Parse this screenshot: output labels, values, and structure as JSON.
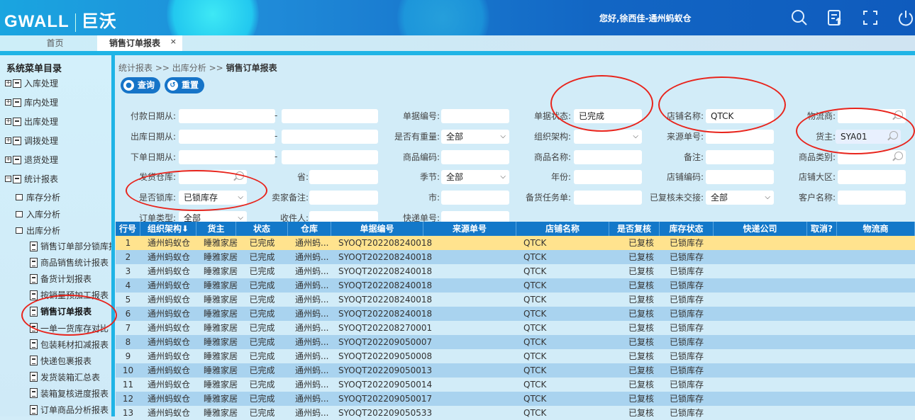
{
  "header": {
    "logo_text": "GWALL",
    "logo_cn": "巨沃",
    "greeting": "您好,徐西佳-通州蚂蚁仓",
    "icons": [
      "search-icon",
      "export-icon",
      "fullscreen-icon",
      "power-icon"
    ]
  },
  "tabs": [
    {
      "label": "首页"
    },
    {
      "label": "销售订单报表",
      "close": "×"
    }
  ],
  "sidebar": {
    "title": "系统菜单目录",
    "groups": [
      {
        "label": "入库处理"
      },
      {
        "label": "库内处理"
      },
      {
        "label": "出库处理"
      },
      {
        "label": "调拨处理"
      },
      {
        "label": "退货处理"
      },
      {
        "label": "统计报表"
      }
    ],
    "folders": [
      {
        "label": "库存分析"
      },
      {
        "label": "入库分析"
      },
      {
        "label": "出库分析"
      }
    ],
    "leaves": [
      {
        "label": "销售订单部分锁库报表"
      },
      {
        "label": "商品销售统计报表"
      },
      {
        "label": "备货计划报表"
      },
      {
        "label": "按销量预加工报表"
      },
      {
        "label": "销售订单报表"
      },
      {
        "label": "一单一货库存对比"
      },
      {
        "label": "包装耗材扣减报表"
      },
      {
        "label": "快递包裹报表"
      },
      {
        "label": "发货装箱汇总表"
      },
      {
        "label": "装箱复核进度报表"
      },
      {
        "label": "订单商品分析报表"
      }
    ]
  },
  "breadcrumb": {
    "a": "统计报表",
    "sep": ">>",
    "b": "出库分析",
    "c": "销售订单报表"
  },
  "buttons": {
    "query": "查询",
    "reset": "重置"
  },
  "form": {
    "pay_date": "付款日期从:",
    "out_date": "出库日期从:",
    "order_date": "下单日期从:",
    "dash": "-",
    "warehouse": "发货仓库:",
    "province": "省:",
    "lock": "是否锁库:",
    "lock_value": "已锁库存",
    "seller_note": "卖家备注:",
    "order_type": "订单类型:",
    "order_type_value": "全部",
    "receiver": "收件人:",
    "doc_no": "单据编号:",
    "has_weight": "是否有重量:",
    "has_weight_value": "全部",
    "sku_code": "商品编码:",
    "season": "季节:",
    "season_value": "全部",
    "city": "市:",
    "express_no": "快递单号:",
    "doc_status": "单据状态:",
    "doc_status_value": "已完成",
    "org": "组织架构:",
    "sku_name": "商品名称:",
    "year": "年份:",
    "stock_task": "备货任务单:",
    "shop_name": "店铺名称:",
    "shop_name_value": "QTCK",
    "source_no": "来源单号:",
    "remark": "备注:",
    "shop_code": "店铺编码:",
    "checked_unhandover": "已复核未交接:",
    "checked_unhandover_value": "全部",
    "carrier": "物流商:",
    "owner": "货主:",
    "owner_value": "SYA01",
    "category": "商品类别:",
    "region": "店铺大区:",
    "customer": "客户名称:"
  },
  "table": {
    "columns": [
      "行号",
      "组织架构⬇",
      "货主",
      "状态",
      "仓库",
      "单据编号",
      "来源单号",
      "店铺名称",
      "是否复核",
      "库存状态",
      "快递公司",
      "取消?",
      "物流商"
    ],
    "rows": [
      [
        "1",
        "通州蚂蚁仓",
        "睡雅家居",
        "已完成",
        "通州蚂...",
        "SYOQT202208240018",
        "",
        "QTCK",
        "已复核",
        "已锁库存",
        "",
        "",
        ""
      ],
      [
        "2",
        "通州蚂蚁仓",
        "睡雅家居",
        "已完成",
        "通州蚂...",
        "SYOQT202208240018",
        "",
        "QTCK",
        "已复核",
        "已锁库存",
        "",
        "",
        ""
      ],
      [
        "3",
        "通州蚂蚁仓",
        "睡雅家居",
        "已完成",
        "通州蚂...",
        "SYOQT202208240018",
        "",
        "QTCK",
        "已复核",
        "已锁库存",
        "",
        "",
        ""
      ],
      [
        "4",
        "通州蚂蚁仓",
        "睡雅家居",
        "已完成",
        "通州蚂...",
        "SYOQT202208240018",
        "",
        "QTCK",
        "已复核",
        "已锁库存",
        "",
        "",
        ""
      ],
      [
        "5",
        "通州蚂蚁仓",
        "睡雅家居",
        "已完成",
        "通州蚂...",
        "SYOQT202208240018",
        "",
        "QTCK",
        "已复核",
        "已锁库存",
        "",
        "",
        ""
      ],
      [
        "6",
        "通州蚂蚁仓",
        "睡雅家居",
        "已完成",
        "通州蚂...",
        "SYOQT202208240018",
        "",
        "QTCK",
        "已复核",
        "已锁库存",
        "",
        "",
        ""
      ],
      [
        "7",
        "通州蚂蚁仓",
        "睡雅家居",
        "已完成",
        "通州蚂...",
        "SYOQT202208270001",
        "",
        "QTCK",
        "已复核",
        "已锁库存",
        "",
        "",
        ""
      ],
      [
        "8",
        "通州蚂蚁仓",
        "睡雅家居",
        "已完成",
        "通州蚂...",
        "SYOQT202209050007",
        "",
        "QTCK",
        "已复核",
        "已锁库存",
        "",
        "",
        ""
      ],
      [
        "9",
        "通州蚂蚁仓",
        "睡雅家居",
        "已完成",
        "通州蚂...",
        "SYOQT202209050008",
        "",
        "QTCK",
        "已复核",
        "已锁库存",
        "",
        "",
        ""
      ],
      [
        "10",
        "通州蚂蚁仓",
        "睡雅家居",
        "已完成",
        "通州蚂...",
        "SYOQT202209050013",
        "",
        "QTCK",
        "已复核",
        "已锁库存",
        "",
        "",
        ""
      ],
      [
        "11",
        "通州蚂蚁仓",
        "睡雅家居",
        "已完成",
        "通州蚂...",
        "SYOQT202209050014",
        "",
        "QTCK",
        "已复核",
        "已锁库存",
        "",
        "",
        ""
      ],
      [
        "12",
        "通州蚂蚁仓",
        "睡雅家居",
        "已完成",
        "通州蚂...",
        "SYOQT202209050017",
        "",
        "QTCK",
        "已复核",
        "已锁库存",
        "",
        "",
        ""
      ],
      [
        "13",
        "通州蚂蚁仓",
        "睡雅家居",
        "已完成",
        "通州蚂...",
        "SYOQT202209050533",
        "",
        "QTCK",
        "已复核",
        "已锁库存",
        "",
        "",
        ""
      ]
    ]
  },
  "colors": {
    "header": "#1266c4",
    "accent": "#1378c9",
    "selected_row": "#ffe38e",
    "annotation": "#e8241c"
  }
}
